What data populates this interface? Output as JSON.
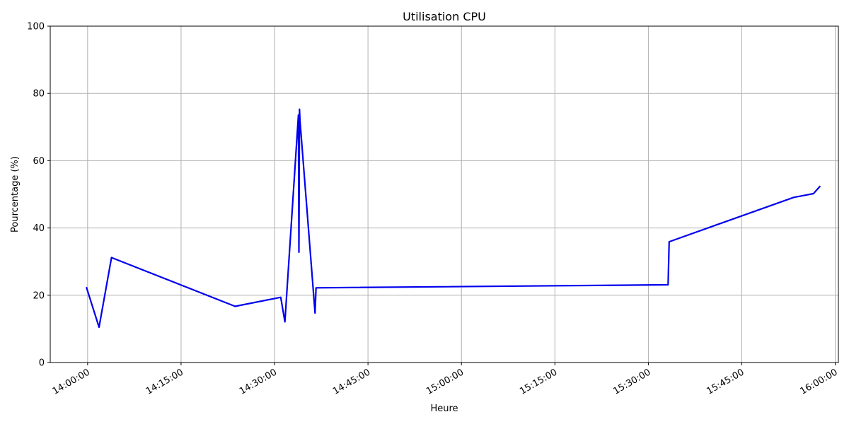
{
  "chart_data": {
    "type": "line",
    "title": "Utilisation CPU",
    "xlabel": "Heure",
    "ylabel": "Pourcentage (%)",
    "ylim": [
      0,
      100
    ],
    "y_ticks": [
      0,
      20,
      40,
      60,
      80,
      100
    ],
    "x_ticks": [
      "14:00:00",
      "14:15:00",
      "14:30:00",
      "14:45:00",
      "15:00:00",
      "15:15:00",
      "15:30:00",
      "15:45:00",
      "16:00:00"
    ],
    "xlim": [
      "13:54:00",
      "16:00:30"
    ],
    "grid": true,
    "color": "#0000ee",
    "series": [
      {
        "x": [
          "13:59:50",
          "14:01:50",
          "14:03:50",
          "14:23:40",
          "14:31:00",
          "14:31:40",
          "14:33:50",
          "14:33:55",
          "14:34:00",
          "14:34:05",
          "14:36:30",
          "14:36:40",
          "15:33:10",
          "15:33:20",
          "15:53:20",
          "15:56:30",
          "15:57:30"
        ],
        "y": [
          22.2,
          10.5,
          31.2,
          16.7,
          19.4,
          12.1,
          73.6,
          32.8,
          75.3,
          72.0,
          14.7,
          22.2,
          23.1,
          35.9,
          49.1,
          50.2,
          52.3
        ]
      }
    ]
  }
}
